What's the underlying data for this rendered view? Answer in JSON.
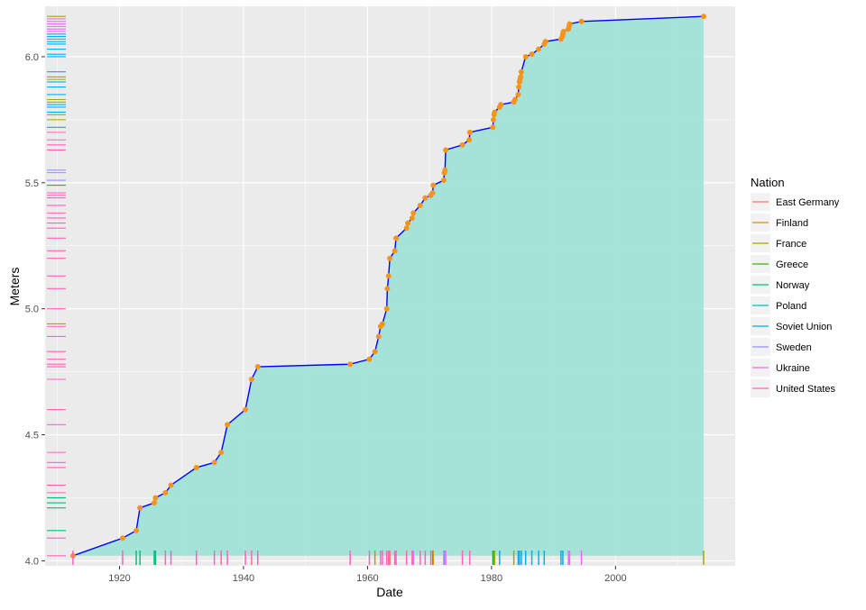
{
  "chart_data": {
    "type": "area",
    "title": "",
    "xlabel": "Date",
    "ylabel": "Meters",
    "xlim": [
      1908,
      2019.3
    ],
    "ylim": [
      3.98,
      6.2
    ],
    "xticks": [
      1920,
      1940,
      1960,
      1980,
      2000
    ],
    "yticks": [
      4.0,
      4.5,
      5.0,
      5.5,
      6.0
    ],
    "ytick_labels": [
      "4.0",
      "4.5",
      "5.0",
      "5.5",
      "6.0"
    ],
    "grid": true,
    "legend": {
      "title": "Nation",
      "position": "right",
      "entries": [
        {
          "name": "East Germany",
          "color": "#F8766D"
        },
        {
          "name": "Finland",
          "color": "#D89000"
        },
        {
          "name": "France",
          "color": "#A3A500"
        },
        {
          "name": "Greece",
          "color": "#39B600"
        },
        {
          "name": "Norway",
          "color": "#00BF7D"
        },
        {
          "name": "Poland",
          "color": "#00BFC4"
        },
        {
          "name": "Soviet Union",
          "color": "#00B0F6"
        },
        {
          "name": "Sweden",
          "color": "#9590FF"
        },
        {
          "name": "Ukraine",
          "color": "#E76BF3"
        },
        {
          "name": "United States",
          "color": "#FF62BC"
        }
      ]
    },
    "colors": {
      "line": "#0000FF",
      "points": "#F7941D",
      "area_fill": "#A1E3D8",
      "panel_bg": "#EBEBEB",
      "grid": "#FFFFFF"
    },
    "series": [
      {
        "values": [
          [
            1912.5,
            4.02
          ],
          [
            1920.5,
            4.09
          ],
          [
            1922.7,
            4.12
          ],
          [
            1923.3,
            4.21
          ],
          [
            1925.6,
            4.23
          ],
          [
            1925.8,
            4.25
          ],
          [
            1927.4,
            4.27
          ],
          [
            1928.3,
            4.3
          ],
          [
            1932.4,
            4.37
          ],
          [
            1935.3,
            4.39
          ],
          [
            1936.4,
            4.43
          ],
          [
            1937.4,
            4.54
          ],
          [
            1940.3,
            4.6
          ],
          [
            1941.3,
            4.72
          ],
          [
            1942.3,
            4.77
          ],
          [
            1957.2,
            4.78
          ],
          [
            1960.3,
            4.8
          ],
          [
            1961.2,
            4.83
          ],
          [
            1961.8,
            4.89
          ],
          [
            1962.1,
            4.93
          ],
          [
            1962.4,
            4.94
          ],
          [
            1963.1,
            5.0
          ],
          [
            1963.2,
            5.08
          ],
          [
            1963.4,
            5.13
          ],
          [
            1963.6,
            5.2
          ],
          [
            1964.4,
            5.23
          ],
          [
            1964.6,
            5.28
          ],
          [
            1966.3,
            5.32
          ],
          [
            1966.5,
            5.34
          ],
          [
            1967.2,
            5.36
          ],
          [
            1967.4,
            5.38
          ],
          [
            1968.5,
            5.41
          ],
          [
            1969.3,
            5.44
          ],
          [
            1970.2,
            5.45
          ],
          [
            1970.5,
            5.46
          ],
          [
            1970.6,
            5.49
          ],
          [
            1972.3,
            5.51
          ],
          [
            1972.4,
            5.54
          ],
          [
            1972.5,
            5.55
          ],
          [
            1972.6,
            5.63
          ],
          [
            1975.3,
            5.65
          ],
          [
            1976.4,
            5.67
          ],
          [
            1976.5,
            5.7
          ],
          [
            1980.2,
            5.72
          ],
          [
            1980.3,
            5.75
          ],
          [
            1980.4,
            5.77
          ],
          [
            1980.5,
            5.78
          ],
          [
            1981.3,
            5.8
          ],
          [
            1981.5,
            5.81
          ],
          [
            1983.6,
            5.82
          ],
          [
            1983.8,
            5.83
          ],
          [
            1984.3,
            5.85
          ],
          [
            1984.4,
            5.88
          ],
          [
            1984.5,
            5.9
          ],
          [
            1984.6,
            5.91
          ],
          [
            1984.7,
            5.92
          ],
          [
            1984.8,
            5.94
          ],
          [
            1985.5,
            6.0
          ],
          [
            1986.5,
            6.01
          ],
          [
            1987.6,
            6.03
          ],
          [
            1988.5,
            6.05
          ],
          [
            1988.7,
            6.06
          ],
          [
            1991.2,
            6.07
          ],
          [
            1991.4,
            6.08
          ],
          [
            1991.5,
            6.09
          ],
          [
            1991.6,
            6.1
          ],
          [
            1992.4,
            6.11
          ],
          [
            1992.5,
            6.12
          ],
          [
            1992.6,
            6.13
          ],
          [
            1994.5,
            6.14
          ],
          [
            2014.2,
            6.16
          ]
        ]
      }
    ],
    "rug_y": [
      {
        "y": 6.16,
        "nation": "France"
      },
      {
        "y": 6.15,
        "nation": "Ukraine"
      },
      {
        "y": 6.14,
        "nation": "Ukraine"
      },
      {
        "y": 6.13,
        "nation": "Ukraine"
      },
      {
        "y": 6.12,
        "nation": "Ukraine"
      },
      {
        "y": 6.11,
        "nation": "Ukraine"
      },
      {
        "y": 6.1,
        "nation": "Ukraine"
      },
      {
        "y": 6.09,
        "nation": "Soviet Union"
      },
      {
        "y": 6.08,
        "nation": "Soviet Union"
      },
      {
        "y": 6.07,
        "nation": "Soviet Union"
      },
      {
        "y": 6.06,
        "nation": "Soviet Union"
      },
      {
        "y": 6.05,
        "nation": "Soviet Union"
      },
      {
        "y": 6.03,
        "nation": "Soviet Union"
      },
      {
        "y": 6.01,
        "nation": "Soviet Union"
      },
      {
        "y": 6.0,
        "nation": "Soviet Union"
      },
      {
        "y": 5.94,
        "nation": "Soviet Union"
      },
      {
        "y": 5.92,
        "nation": "France"
      },
      {
        "y": 5.91,
        "nation": "France"
      },
      {
        "y": 5.9,
        "nation": "Soviet Union"
      },
      {
        "y": 5.88,
        "nation": "Soviet Union"
      },
      {
        "y": 5.85,
        "nation": "Soviet Union"
      },
      {
        "y": 5.83,
        "nation": "France"
      },
      {
        "y": 5.82,
        "nation": "France"
      },
      {
        "y": 5.81,
        "nation": "Soviet Union"
      },
      {
        "y": 5.8,
        "nation": "Soviet Union"
      },
      {
        "y": 5.78,
        "nation": "Soviet Union"
      },
      {
        "y": 5.77,
        "nation": "France"
      },
      {
        "y": 5.75,
        "nation": "France"
      },
      {
        "y": 5.72,
        "nation": "Soviet Union"
      },
      {
        "y": 5.7,
        "nation": "United States"
      },
      {
        "y": 5.67,
        "nation": "United States"
      },
      {
        "y": 5.65,
        "nation": "United States"
      },
      {
        "y": 5.63,
        "nation": "United States"
      },
      {
        "y": 5.55,
        "nation": "Sweden"
      },
      {
        "y": 5.54,
        "nation": "Sweden"
      },
      {
        "y": 5.51,
        "nation": "Sweden"
      },
      {
        "y": 5.49,
        "nation": "Greece"
      },
      {
        "y": 5.46,
        "nation": "United States"
      },
      {
        "y": 5.45,
        "nation": "United States"
      },
      {
        "y": 5.44,
        "nation": "United States"
      },
      {
        "y": 5.41,
        "nation": "United States"
      },
      {
        "y": 5.38,
        "nation": "United States"
      },
      {
        "y": 5.36,
        "nation": "United States"
      },
      {
        "y": 5.34,
        "nation": "United States"
      },
      {
        "y": 5.32,
        "nation": "United States"
      },
      {
        "y": 5.28,
        "nation": "United States"
      },
      {
        "y": 5.23,
        "nation": "United States"
      },
      {
        "y": 5.2,
        "nation": "United States"
      },
      {
        "y": 5.13,
        "nation": "United States"
      },
      {
        "y": 5.08,
        "nation": "United States"
      },
      {
        "y": 5.0,
        "nation": "United States"
      },
      {
        "y": 4.94,
        "nation": "Finland"
      },
      {
        "y": 4.93,
        "nation": "United States"
      },
      {
        "y": 4.89,
        "nation": "United States"
      },
      {
        "y": 4.83,
        "nation": "United States"
      },
      {
        "y": 4.8,
        "nation": "United States"
      },
      {
        "y": 4.78,
        "nation": "United States"
      },
      {
        "y": 4.77,
        "nation": "United States"
      },
      {
        "y": 4.72,
        "nation": "United States"
      },
      {
        "y": 4.6,
        "nation": "United States"
      },
      {
        "y": 4.54,
        "nation": "United States"
      },
      {
        "y": 4.43,
        "nation": "United States"
      },
      {
        "y": 4.39,
        "nation": "United States"
      },
      {
        "y": 4.37,
        "nation": "United States"
      },
      {
        "y": 4.3,
        "nation": "United States"
      },
      {
        "y": 4.27,
        "nation": "United States"
      },
      {
        "y": 4.25,
        "nation": "Norway"
      },
      {
        "y": 4.23,
        "nation": "Norway"
      },
      {
        "y": 4.21,
        "nation": "Norway"
      },
      {
        "y": 4.12,
        "nation": "Norway"
      },
      {
        "y": 4.09,
        "nation": "United States"
      },
      {
        "y": 4.02,
        "nation": "United States"
      }
    ],
    "rug_x": [
      {
        "x": 1912.5,
        "nation": "United States"
      },
      {
        "x": 1920.5,
        "nation": "United States"
      },
      {
        "x": 1922.7,
        "nation": "Norway"
      },
      {
        "x": 1923.3,
        "nation": "Norway"
      },
      {
        "x": 1925.6,
        "nation": "Norway"
      },
      {
        "x": 1925.8,
        "nation": "Norway"
      },
      {
        "x": 1927.4,
        "nation": "United States"
      },
      {
        "x": 1928.3,
        "nation": "United States"
      },
      {
        "x": 1932.4,
        "nation": "United States"
      },
      {
        "x": 1935.3,
        "nation": "United States"
      },
      {
        "x": 1936.4,
        "nation": "United States"
      },
      {
        "x": 1937.4,
        "nation": "United States"
      },
      {
        "x": 1940.3,
        "nation": "United States"
      },
      {
        "x": 1941.3,
        "nation": "United States"
      },
      {
        "x": 1942.3,
        "nation": "United States"
      },
      {
        "x": 1957.2,
        "nation": "United States"
      },
      {
        "x": 1960.3,
        "nation": "United States"
      },
      {
        "x": 1961.2,
        "nation": "Finland"
      },
      {
        "x": 1962.1,
        "nation": "United States"
      },
      {
        "x": 1962.4,
        "nation": "United States"
      },
      {
        "x": 1963.1,
        "nation": "United States"
      },
      {
        "x": 1963.4,
        "nation": "United States"
      },
      {
        "x": 1963.6,
        "nation": "East Germany"
      },
      {
        "x": 1964.4,
        "nation": "United States"
      },
      {
        "x": 1964.6,
        "nation": "United States"
      },
      {
        "x": 1966.3,
        "nation": "United States"
      },
      {
        "x": 1967.2,
        "nation": "United States"
      },
      {
        "x": 1967.4,
        "nation": "Ukraine"
      },
      {
        "x": 1968.5,
        "nation": "United States"
      },
      {
        "x": 1969.3,
        "nation": "United States"
      },
      {
        "x": 1970.2,
        "nation": "United States"
      },
      {
        "x": 1970.5,
        "nation": "Greece"
      },
      {
        "x": 1970.6,
        "nation": "Finland"
      },
      {
        "x": 1972.3,
        "nation": "Sweden"
      },
      {
        "x": 1972.4,
        "nation": "Sweden"
      },
      {
        "x": 1972.6,
        "nation": "Ukraine"
      },
      {
        "x": 1975.3,
        "nation": "United States"
      },
      {
        "x": 1976.5,
        "nation": "United States"
      },
      {
        "x": 1980.2,
        "nation": "Soviet Union"
      },
      {
        "x": 1980.3,
        "nation": "Greece"
      },
      {
        "x": 1980.5,
        "nation": "France"
      },
      {
        "x": 1981.3,
        "nation": "Soviet Union"
      },
      {
        "x": 1983.6,
        "nation": "France"
      },
      {
        "x": 1984.3,
        "nation": "Soviet Union"
      },
      {
        "x": 1984.5,
        "nation": "Soviet Union"
      },
      {
        "x": 1984.8,
        "nation": "Soviet Union"
      },
      {
        "x": 1985.5,
        "nation": "Soviet Union"
      },
      {
        "x": 1986.5,
        "nation": "Soviet Union"
      },
      {
        "x": 1987.6,
        "nation": "Soviet Union"
      },
      {
        "x": 1988.5,
        "nation": "Soviet Union"
      },
      {
        "x": 1991.2,
        "nation": "Soviet Union"
      },
      {
        "x": 1991.5,
        "nation": "Soviet Union"
      },
      {
        "x": 1992.4,
        "nation": "Ukraine"
      },
      {
        "x": 1992.6,
        "nation": "Ukraine"
      },
      {
        "x": 1994.5,
        "nation": "Ukraine"
      },
      {
        "x": 2014.2,
        "nation": "France"
      }
    ]
  }
}
